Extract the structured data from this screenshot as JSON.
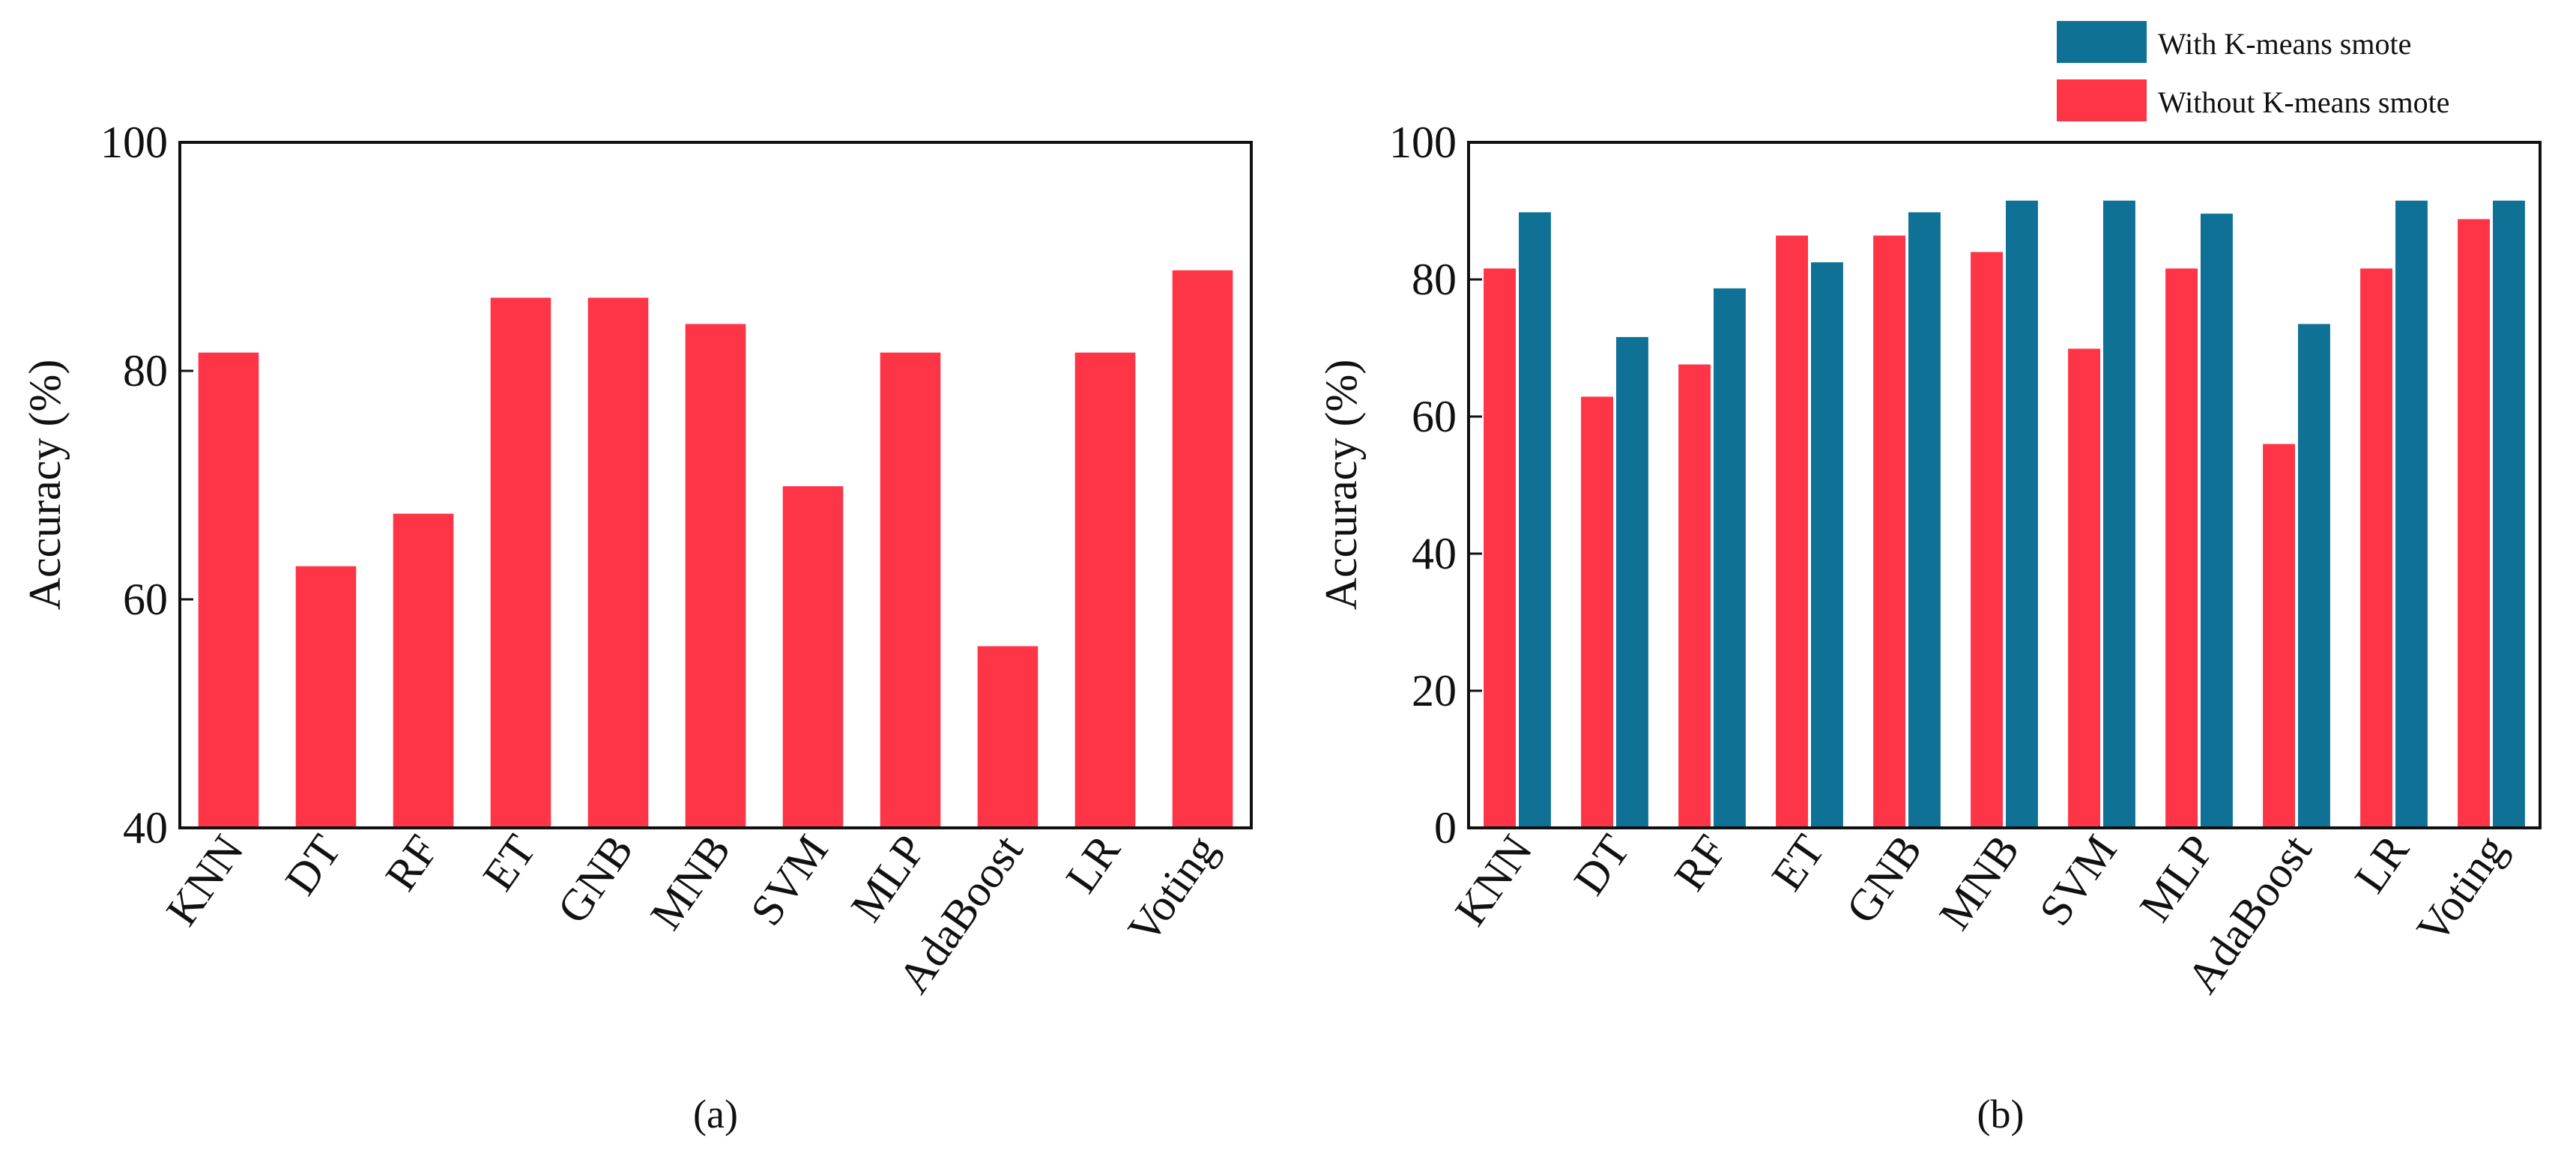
{
  "legend": {
    "placement": "top-right",
    "items": [
      {
        "label": "With K-means smote",
        "color": "#0e7195"
      },
      {
        "label": "Without K-means smote",
        "color": "#fd3547"
      }
    ]
  },
  "chart_data": [
    {
      "type": "bar",
      "panel_label": "(a)",
      "ylabel": "Accuracy (%)",
      "ylim": [
        40,
        100
      ],
      "yticks": [
        40,
        60,
        80,
        100
      ],
      "grid": false,
      "categories": [
        "KNN",
        "DT",
        "RF",
        "ET",
        "GNB",
        "MNB",
        "SVM",
        "MLP",
        "AdaBoost",
        "LR",
        "Voting"
      ],
      "series": [
        {
          "color": "#fd3547",
          "values": [
            81.6,
            62.9,
            67.5,
            86.4,
            86.4,
            84.1,
            69.9,
            81.6,
            55.9,
            81.6,
            88.8
          ]
        }
      ]
    },
    {
      "type": "bar",
      "panel_label": "(b)",
      "ylabel": "Accuracy (%)",
      "ylim": [
        0,
        100
      ],
      "yticks": [
        0,
        20,
        40,
        60,
        80,
        100
      ],
      "grid": false,
      "categories": [
        "KNN",
        "DT",
        "RF",
        "ET",
        "GNB",
        "MNB",
        "SVM",
        "MLP",
        "AdaBoost",
        "LR",
        "Voting"
      ],
      "series": [
        {
          "name": "Without K-means smote",
          "color": "#fd3547",
          "values": [
            81.6,
            62.9,
            67.6,
            86.4,
            86.4,
            84.0,
            69.9,
            81.6,
            56.0,
            81.6,
            88.8
          ]
        },
        {
          "name": "With K-means smote",
          "color": "#0e7195",
          "values": [
            89.8,
            71.6,
            78.7,
            82.5,
            89.8,
            91.5,
            91.5,
            89.6,
            73.5,
            91.5,
            91.5
          ]
        }
      ]
    }
  ]
}
